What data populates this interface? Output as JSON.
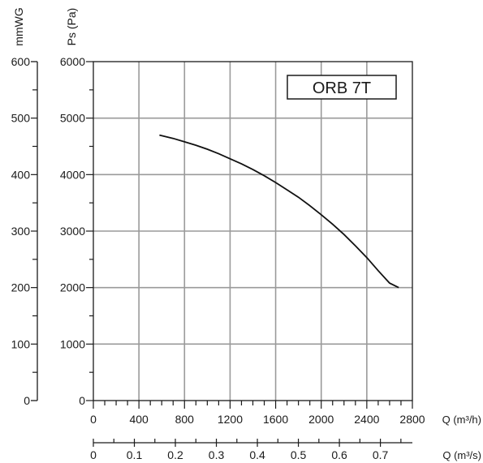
{
  "chart_data": {
    "type": "line",
    "title": "ORB 7T",
    "ylabel": "Ps (Pa)",
    "ylabel_secondary": "mmWG",
    "xlabel": "Q (m³/h)",
    "xlabel_secondary": "Q (m³/s)",
    "xlim": [
      0,
      2800
    ],
    "ylim": [
      0,
      6000
    ],
    "ylim_secondary": [
      0,
      600
    ],
    "xlim_secondary": [
      0,
      0.778
    ],
    "x_ticks": [
      "0",
      "400",
      "800",
      "1200",
      "1600",
      "2000",
      "2400",
      "2800"
    ],
    "y_ticks": [
      "0",
      "1000",
      "2000",
      "3000",
      "4000",
      "5000",
      "6000"
    ],
    "y_ticks_secondary": [
      "0",
      "100",
      "200",
      "300",
      "400",
      "500",
      "600"
    ],
    "x_ticks_secondary": [
      "0",
      "0.1",
      "0.2",
      "0.3",
      "0.4",
      "0.5",
      "0.6",
      "0.7"
    ],
    "grid": true,
    "legend": "top-right",
    "series": [
      {
        "x": [
          580,
          700,
          800,
          900,
          1000,
          1100,
          1200,
          1300,
          1400,
          1500,
          1600,
          1700,
          1800,
          1900,
          2000,
          2100,
          2200,
          2300,
          2400,
          2500,
          2600,
          2680
        ],
        "y": [
          4700,
          4640,
          4580,
          4520,
          4450,
          4370,
          4280,
          4190,
          4090,
          3980,
          3860,
          3730,
          3600,
          3450,
          3290,
          3120,
          2940,
          2740,
          2530,
          2300,
          2080,
          2000
        ]
      }
    ]
  },
  "colors": {
    "curve": "#111111",
    "grid": "#9a9a9a",
    "axis": "#1a1a1a"
  }
}
